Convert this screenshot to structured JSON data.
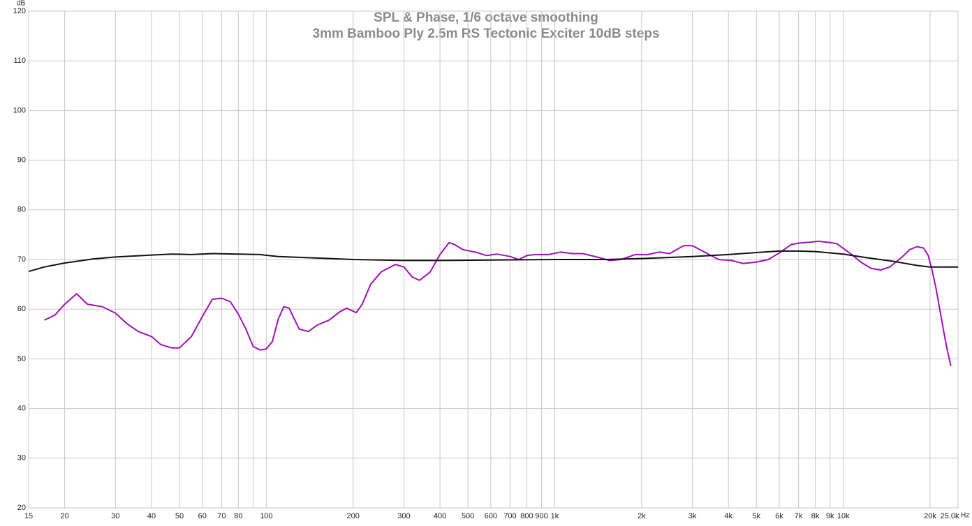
{
  "chart_data": {
    "type": "line",
    "title": "SPL & Phase, 1/6 octave smoothing",
    "subtitle": "3mm Bamboo Ply 2.5m RS Tectonic Exciter 10dB steps",
    "y_label": "dB",
    "x_label": "Hz",
    "xscale": "log",
    "grid": true,
    "xlim": [
      15,
      25000
    ],
    "ylim": [
      20,
      120
    ],
    "yticks": [
      20,
      30,
      40,
      50,
      60,
      70,
      80,
      90,
      100,
      110,
      120
    ],
    "xticks": [
      15,
      20,
      30,
      40,
      50,
      60,
      70,
      80,
      100,
      200,
      300,
      400,
      500,
      600,
      700,
      800,
      900,
      {
        "value": 1000,
        "label": "1k"
      },
      {
        "value": 2000,
        "label": "2k"
      },
      {
        "value": 3000,
        "label": "3k"
      },
      {
        "value": 4000,
        "label": "4k"
      },
      {
        "value": 5000,
        "label": "5k"
      },
      {
        "value": 6000,
        "label": "6k"
      },
      {
        "value": 7000,
        "label": "7k"
      },
      {
        "value": 8000,
        "label": "8k"
      },
      {
        "value": 9000,
        "label": "9k"
      },
      {
        "value": 10000,
        "label": "10k"
      },
      {
        "value": 20000,
        "label": "20k"
      },
      {
        "value": 25000,
        "label": "25.0k"
      }
    ],
    "x_minor_ticks": [
      90
    ],
    "series": [
      {
        "color": "#a010b8",
        "x": [
          17,
          18.5,
          20,
          22,
          24,
          27,
          30,
          33,
          36,
          40,
          43,
          47,
          50,
          55,
          60,
          65,
          70,
          75,
          80,
          85,
          90,
          95,
          100,
          105,
          110,
          115,
          120,
          130,
          140,
          150,
          165,
          180,
          190,
          205,
          215,
          230,
          250,
          280,
          300,
          320,
          340,
          370,
          400,
          430,
          450,
          480,
          530,
          580,
          630,
          700,
          750,
          800,
          850,
          950,
          1050,
          1150,
          1250,
          1400,
          1550,
          1700,
          1900,
          2100,
          2300,
          2500,
          2800,
          3000,
          3300,
          3700,
          4100,
          4500,
          5000,
          5500,
          6000,
          6600,
          7000,
          7700,
          8200,
          9000,
          9500,
          10700,
          11500,
          12500,
          13500,
          14500,
          16000,
          17000,
          18000,
          19000,
          19700,
          20300,
          21000,
          21600,
          22300,
          23000,
          23600
        ],
        "values": [
          57.8,
          58.8,
          61,
          63.1,
          61,
          60.5,
          59.2,
          57,
          55.5,
          54.5,
          52.9,
          52.2,
          52.2,
          54.5,
          58.5,
          62,
          62.2,
          61.5,
          59,
          56,
          52.5,
          51.8,
          52,
          53.5,
          58,
          60.5,
          60.2,
          56,
          55.5,
          56.8,
          57.8,
          59.5,
          60.2,
          59.3,
          61,
          65,
          67.5,
          69,
          68.5,
          66.5,
          65.8,
          67.5,
          71,
          73.4,
          73,
          72,
          71.5,
          70.8,
          71.1,
          70.6,
          70,
          70.8,
          71,
          71,
          71.5,
          71.2,
          71.2,
          70.5,
          69.8,
          70,
          71,
          71,
          71.5,
          71.2,
          72.8,
          72.8,
          71.5,
          70,
          69.8,
          69.2,
          69.5,
          70,
          71.3,
          73,
          73.3,
          73.5,
          73.7,
          73.4,
          73.2,
          71,
          69.5,
          68.2,
          67.9,
          68.5,
          70.5,
          72,
          72.6,
          72.3,
          70.8,
          68,
          64,
          60,
          55.5,
          51.5,
          48.6
        ]
      },
      {
        "color": "#111111",
        "x": [
          15,
          17,
          20,
          25,
          30,
          40,
          47,
          55,
          65,
          80,
          95,
          110,
          150,
          200,
          300,
          400,
          600,
          1000,
          1500,
          2000,
          3000,
          4000,
          5000,
          6000,
          7000,
          8000,
          10000,
          12000,
          15000,
          18000,
          20000,
          25000
        ],
        "values": [
          67.6,
          68.5,
          69.3,
          70.1,
          70.5,
          70.9,
          71.1,
          71.0,
          71.2,
          71.1,
          71.0,
          70.6,
          70.3,
          70.0,
          69.8,
          69.8,
          69.9,
          70.0,
          70.0,
          70.2,
          70.6,
          71.0,
          71.4,
          71.7,
          71.7,
          71.6,
          71.1,
          70.4,
          69.6,
          68.8,
          68.5,
          68.5
        ]
      }
    ]
  }
}
